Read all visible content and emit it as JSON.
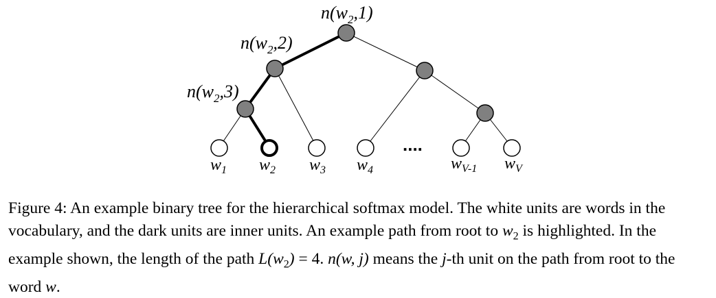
{
  "tree": {
    "labels": {
      "root": {
        "base": "n(w",
        "sub": "2",
        "rest": ",1)"
      },
      "level2": {
        "base": "n(w",
        "sub": "2",
        "rest": ",2)"
      },
      "level3": {
        "base": "n(w",
        "sub": "2",
        "rest": ",3)"
      }
    },
    "leaves": [
      {
        "base": "w",
        "sub": "1"
      },
      {
        "base": "w",
        "sub": "2"
      },
      {
        "base": "w",
        "sub": "3"
      },
      {
        "base": "w",
        "sub": "4"
      },
      {
        "base": "w",
        "sub": "V-1"
      },
      {
        "base": "w",
        "sub": "V"
      }
    ],
    "ellipsis": "....",
    "colors": {
      "inner": "#808080",
      "leaf": "#ffffff",
      "edge": "#000000"
    }
  },
  "caption": {
    "figure_label": "Figure 4:",
    "s1": " An example binary tree for the hierarchical softmax model. The white units are words in the vocabulary, and the dark units are inner units. An example path from root to ",
    "w2_base": "w",
    "w2_sub": "2",
    "s2": " is highlighted. In the example shown, the length of the path ",
    "path_expr": "L(w",
    "path_sub": "2",
    "path_close": ")",
    "eq": " = 4. ",
    "nwj": "n(w, j)",
    "s3": " means the ",
    "j": "j",
    "s4": "-th unit on the path from root to the word ",
    "w": "w",
    "end": "."
  }
}
